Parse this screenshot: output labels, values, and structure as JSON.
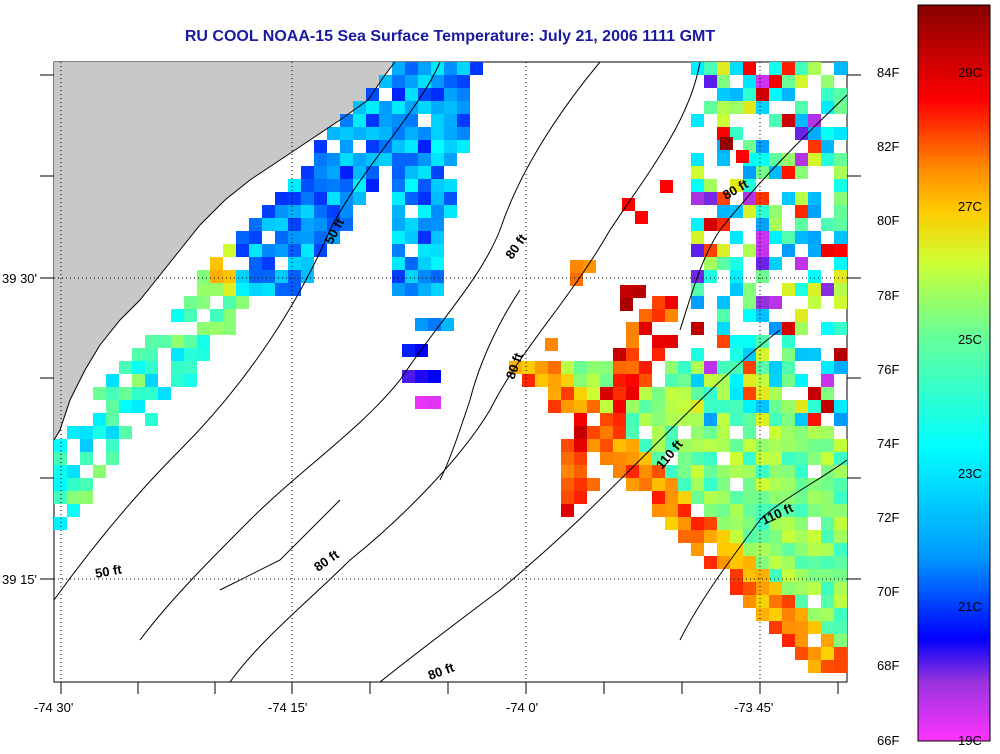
{
  "title": "RU COOL  NOAA-15  Sea Surface Temperature:  July 21, 2006 1111 GMT",
  "axes": {
    "x_ticks": [
      "-74 30'",
      "-74 15'",
      "-74 0'",
      "-73 45'"
    ],
    "y_ticks": [
      "39 30'",
      "39 15'"
    ]
  },
  "contour_labels": [
    "50 ft",
    "50 ft",
    "80 ft",
    "80 ft",
    "80 ft",
    "80 ft",
    "80 ft",
    "110 ft",
    "110 ft"
  ],
  "colorbar": {
    "fahrenheit": [
      "84F",
      "82F",
      "80F",
      "78F",
      "76F",
      "74F",
      "72F",
      "70F",
      "68F",
      "66F"
    ],
    "celsius": [
      "29C",
      "27C",
      "25C",
      "23C",
      "21C",
      "19C"
    ],
    "colors": [
      "#ff33ff",
      "#9933dd",
      "#0000ff",
      "#0099ff",
      "#00ffff",
      "#66ff99",
      "#ccff33",
      "#ffcc00",
      "#ff8800",
      "#ff0000",
      "#880000"
    ]
  },
  "colors": {
    "land": "#c8c8c8",
    "title": "#1a1aa0"
  }
}
